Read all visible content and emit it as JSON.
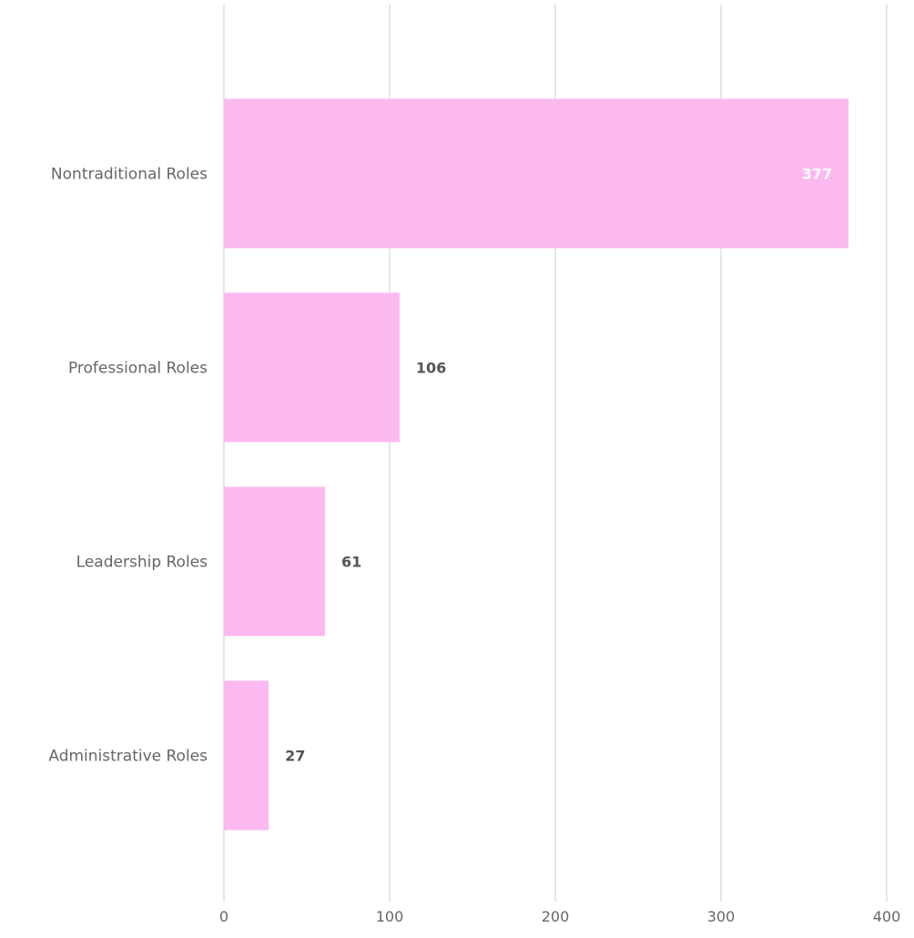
{
  "chart_data": {
    "type": "bar",
    "orientation": "horizontal",
    "title": "",
    "xlabel": "",
    "ylabel": "",
    "categories": [
      "Nontraditional Roles",
      "Professional Roles",
      "Leadership Roles",
      "Administrative Roles"
    ],
    "values": [
      377,
      106,
      61,
      27
    ],
    "xlim": [
      0,
      400
    ],
    "x_ticks": [
      "0",
      "100",
      "200",
      "300",
      "400"
    ],
    "grid": true,
    "legend": "none",
    "data_labels": [
      "377",
      "106",
      "61",
      "27"
    ],
    "colors": {
      "bar": "#fbb9f0",
      "grid": "#e6e6e6",
      "axis_text": "#666666",
      "label_outside": "#555555",
      "label_inside": "#ffffff"
    }
  }
}
